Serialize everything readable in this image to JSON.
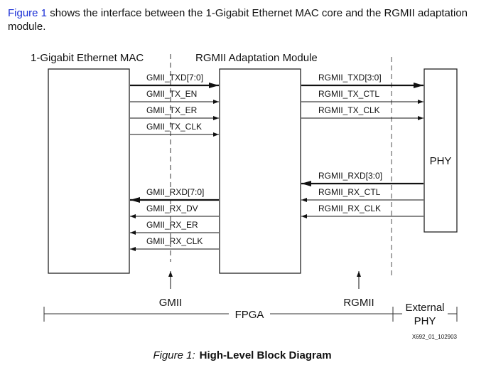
{
  "intro": {
    "link_text": "Figure 1",
    "text": " shows the interface between the 1-Gigabit Ethernet MAC core and the RGMII adaptation module."
  },
  "diagram": {
    "mac_label": "1-Gigabit Ethernet MAC",
    "adapter_label": "RGMII Adaptation Module",
    "phy_label": "PHY",
    "gmii_tx": [
      "GMII_TXD[7:0]",
      "GMII_TX_EN",
      "GMII_TX_ER",
      "GMII_TX_CLK"
    ],
    "gmii_rx": [
      "GMII_RXD[7:0]",
      "GMII_RX_DV",
      "GMII_RX_ER",
      "GMII_RX_CLK"
    ],
    "rgmii_tx": [
      "RGMII_TXD[3:0]",
      "RGMII_TX_CTL",
      "RGMII_TX_CLK"
    ],
    "rgmii_rx": [
      "RGMII_RXD[3:0]",
      "RGMII_RX_CTL",
      "RGMII_RX_CLK"
    ],
    "gmii_boundary": "GMII",
    "rgmii_boundary": "RGMII",
    "fpga_span": "FPGA",
    "external_span_line1": "External",
    "external_span_line2": "PHY",
    "figure_code": "X692_01_102903"
  },
  "caption": {
    "number": "Figure 1:",
    "title": "High-Level Block Diagram"
  }
}
